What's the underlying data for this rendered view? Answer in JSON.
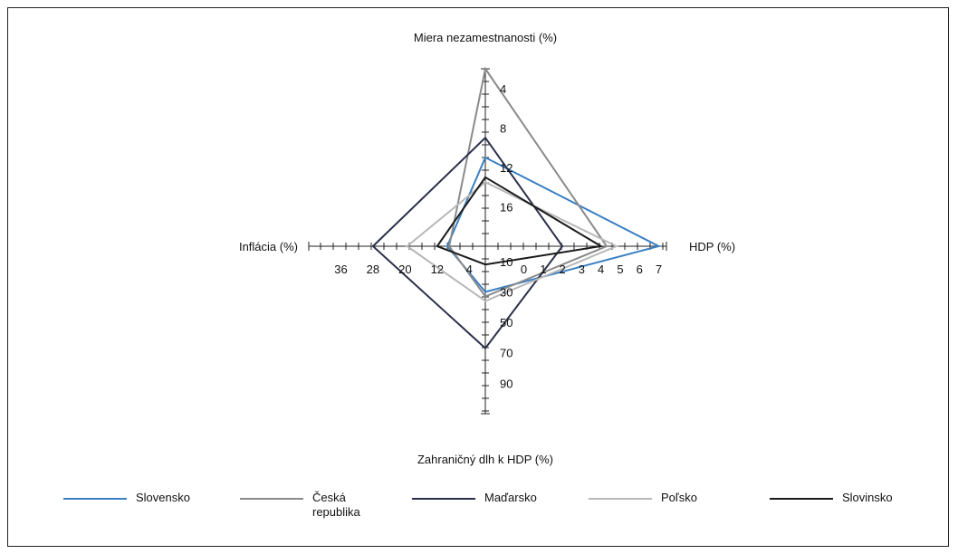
{
  "chart_data": {
    "type": "radar",
    "axes": [
      {
        "name": "Miera nezamestnanosti (%)",
        "ticks": [
          "4",
          "8",
          "12",
          "16"
        ],
        "tick_values": [
          4,
          8,
          12,
          16
        ],
        "range": [
          2,
          20
        ],
        "inverted": true
      },
      {
        "name": "HDP (%)",
        "ticks": [
          "0",
          "1",
          "2",
          "3",
          "4",
          "5",
          "6",
          "7"
        ],
        "tick_values": [
          0,
          1,
          2,
          3,
          4,
          5,
          6,
          7
        ],
        "range": [
          -2,
          7.4
        ],
        "inverted": false
      },
      {
        "name": "Zahraničný dlh k HDP (%)",
        "ticks": [
          "90",
          "70",
          "50",
          "30",
          "10"
        ],
        "tick_values": [
          90,
          70,
          50,
          30,
          10
        ],
        "range": [
          110,
          0
        ],
        "inverted": true
      },
      {
        "name": "Inflácia (%)",
        "ticks": [
          "4",
          "12",
          "20",
          "28",
          "36"
        ],
        "tick_values": [
          4,
          12,
          20,
          28,
          36
        ],
        "range": [
          44,
          0
        ],
        "inverted": true
      }
    ],
    "series": [
      {
        "name": "Slovensko",
        "color": "#3a7fc2",
        "values": [
          11.0,
          7.0,
          30.0,
          9.5
        ]
      },
      {
        "name": "Česká republika",
        "color": "#8a8a8a",
        "values": [
          2.0,
          4.3,
          33.0,
          9.0
        ]
      },
      {
        "name": "Maďarsko",
        "color": "#2b2f4a",
        "values": [
          9.0,
          2.0,
          67.0,
          28.0
        ]
      },
      {
        "name": "Poľsko",
        "color": "#b8b8b8",
        "values": [
          13.5,
          4.8,
          36.0,
          19.5
        ]
      },
      {
        "name": "Slovinsko",
        "color": "#1a1a1a",
        "values": [
          13.0,
          4.0,
          12.0,
          12.0
        ]
      }
    ]
  }
}
